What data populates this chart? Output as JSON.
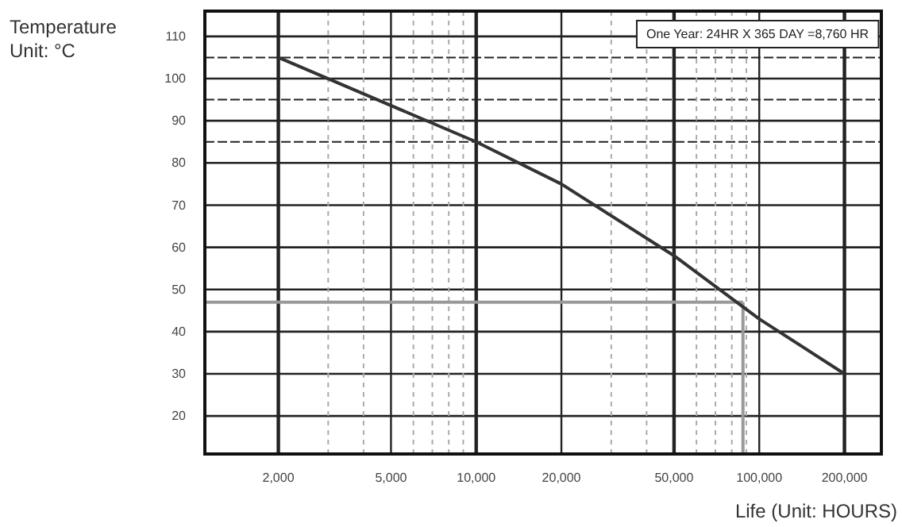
{
  "chart_data": {
    "type": "line",
    "xlabel": "Life (Unit: HOURS)",
    "ylabel": "Temperature\nUnit: °C",
    "annotations": [
      "One Year: 24HR X 365 DAY =8,760 HR"
    ],
    "x": [
      2000,
      10000,
      20000,
      50000,
      100000,
      200000
    ],
    "series": [
      {
        "color": "#333333",
        "values": [
          105,
          85,
          75,
          58,
          43,
          30
        ]
      }
    ],
    "log": "x",
    "xlim": [
      1100,
      270000
    ],
    "xticks": [
      {
        "value": 2000,
        "label": "2,000"
      },
      {
        "value": 3000,
        "label": null
      },
      {
        "value": 4000,
        "label": null
      },
      {
        "value": 5000,
        "label": "5,000"
      },
      {
        "value": 6000,
        "label": null
      },
      {
        "value": 7000,
        "label": null
      },
      {
        "value": 8000,
        "label": null
      },
      {
        "value": 9000,
        "label": null
      },
      {
        "value": 10000,
        "label": "10,000"
      },
      {
        "value": 20000,
        "label": "20,000"
      },
      {
        "value": 30000,
        "label": null
      },
      {
        "value": 40000,
        "label": null
      },
      {
        "value": 50000,
        "label": "50,000"
      },
      {
        "value": 60000,
        "label": null
      },
      {
        "value": 70000,
        "label": null
      },
      {
        "value": 80000,
        "label": null
      },
      {
        "value": 90000,
        "label": null
      },
      {
        "value": 100000,
        "label": "100,000"
      },
      {
        "value": 200000,
        "label": "200,000"
      }
    ],
    "ylim": [
      11,
      116
    ],
    "yticks": [
      20,
      30,
      40,
      50,
      60,
      70,
      80,
      {
        "value": 85,
        "label": null
      },
      90,
      {
        "value": 95,
        "label": null
      },
      100,
      {
        "value": 105,
        "label": null
      },
      110
    ],
    "grid": true,
    "marker": "none",
    "line_style": "solid",
    "ref_lines": [
      {
        "axis": "y",
        "value": 47,
        "label": null,
        "color": "#999999"
      },
      {
        "axis": "x",
        "value": 87600,
        "label": null,
        "color": "#999999"
      }
    ]
  }
}
